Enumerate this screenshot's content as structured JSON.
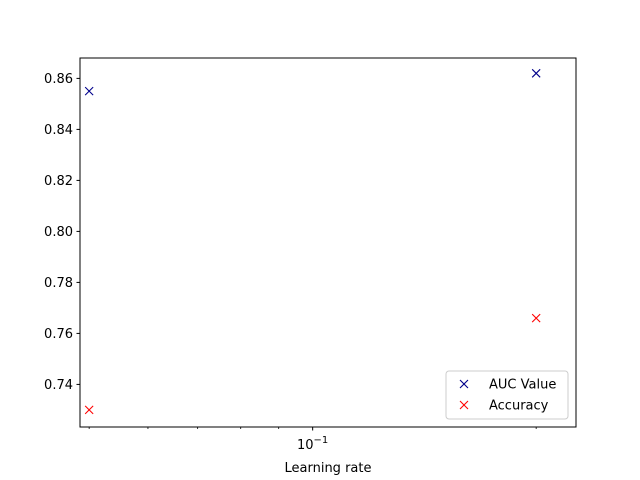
{
  "chart_data": {
    "type": "scatter",
    "title": "",
    "xlabel": "Learning rate",
    "ylabel": "",
    "xscale": "log",
    "x_tick_major": {
      "value": 0.1,
      "base": "10",
      "exponent": "−1"
    },
    "xlim": [
      0.0486,
      0.2263
    ],
    "ylim": [
      0.7233,
      0.868
    ],
    "yticks": [
      0.74,
      0.76,
      0.78,
      0.8,
      0.82,
      0.84,
      0.86
    ],
    "ytick_labels": [
      "0.74",
      "0.76",
      "0.78",
      "0.80",
      "0.82",
      "0.84",
      "0.86"
    ],
    "grid": false,
    "legend_position": "lower-right",
    "marker": "x",
    "series": [
      {
        "name": "AUC Value",
        "color": "#00008b",
        "x": [
          0.05,
          0.2
        ],
        "y": [
          0.855,
          0.862
        ]
      },
      {
        "name": "Accuracy",
        "color": "#ff0000",
        "x": [
          0.05,
          0.2
        ],
        "y": [
          0.73,
          0.766
        ]
      }
    ]
  }
}
